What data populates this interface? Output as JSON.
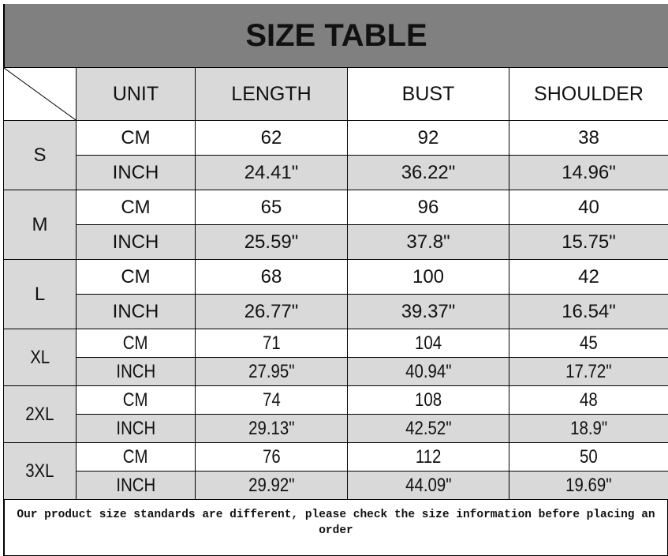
{
  "title": "SIZE TABLE",
  "headers": [
    "UNIT",
    "LENGTH",
    "BUST",
    "SHOULDER"
  ],
  "rows": [
    {
      "size": "S",
      "cm": [
        "CM",
        "62",
        "92",
        "38"
      ],
      "inch": [
        "INCH",
        "24.41\"",
        "36.22\"",
        "14.96\""
      ]
    },
    {
      "size": "M",
      "cm": [
        "CM",
        "65",
        "96",
        "40"
      ],
      "inch": [
        "INCH",
        "25.59\"",
        "37.8\"",
        "15.75\""
      ]
    },
    {
      "size": "L",
      "cm": [
        "CM",
        "68",
        "100",
        "42"
      ],
      "inch": [
        "INCH",
        "26.77\"",
        "39.37\"",
        "16.54\""
      ]
    },
    {
      "size": "XL",
      "cm": [
        "CM",
        "71",
        "104",
        "45"
      ],
      "inch": [
        "INCH",
        "27.95\"",
        "40.94\"",
        "17.72\""
      ]
    },
    {
      "size": "2XL",
      "cm": [
        "CM",
        "74",
        "108",
        "48"
      ],
      "inch": [
        "INCH",
        "29.13\"",
        "42.52\"",
        "18.9\""
      ]
    },
    {
      "size": "3XL",
      "cm": [
        "CM",
        "76",
        "112",
        "50"
      ],
      "inch": [
        "INCH",
        "29.92\"",
        "44.09\"",
        "19.69\""
      ]
    }
  ],
  "note": "Our product size standards are different, please check the size information before placing an order",
  "colors": {
    "title_bg": "#808080",
    "cell_gray": "#d9d9d9"
  }
}
